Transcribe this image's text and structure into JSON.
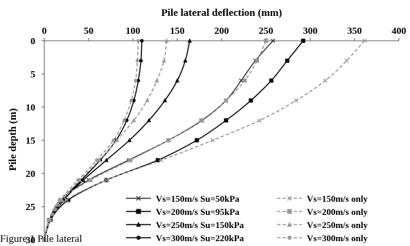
{
  "caption": "Figure 1 Pile lateral",
  "chart_data": {
    "type": "line",
    "xlabel": "Pile lateral deflection (mm)",
    "ylabel": "Pile depth (m)",
    "xlim": [
      0,
      400
    ],
    "ylim": [
      30,
      0
    ],
    "x_axis_position": "top",
    "y_axis_inverted": true,
    "grid": false,
    "legend_position": "bottom-right",
    "xticks": [
      0,
      50,
      100,
      150,
      200,
      250,
      300,
      350,
      400
    ],
    "yticks": [
      0,
      5,
      10,
      15,
      20,
      25,
      30
    ],
    "series": [
      {
        "name": "Vs=150m/s Su=50kPa",
        "color": "#333333",
        "dashed": false,
        "marker": "x",
        "points": [
          [
            258,
            0
          ],
          [
            238,
            3
          ],
          [
            222,
            6
          ],
          [
            205,
            9
          ],
          [
            178,
            12
          ],
          [
            140,
            15
          ],
          [
            95,
            18
          ],
          [
            50,
            21
          ],
          [
            18,
            24
          ],
          [
            6,
            27
          ],
          [
            0,
            30
          ]
        ]
      },
      {
        "name": "Vs=200m/s Su=95kPa",
        "color": "#000000",
        "dashed": false,
        "marker": "square",
        "points": [
          [
            292,
            0
          ],
          [
            274,
            3
          ],
          [
            256,
            6
          ],
          [
            233,
            9
          ],
          [
            205,
            12
          ],
          [
            172,
            15
          ],
          [
            128,
            18
          ],
          [
            70,
            21
          ],
          [
            27,
            24
          ],
          [
            7,
            27
          ],
          [
            0,
            30
          ]
        ]
      },
      {
        "name": "Vs=250m/s Su=150kPa",
        "color": "#000000",
        "dashed": false,
        "marker": "triangle",
        "points": [
          [
            164,
            0
          ],
          [
            159,
            3
          ],
          [
            150,
            6
          ],
          [
            136,
            9
          ],
          [
            118,
            12
          ],
          [
            96,
            15
          ],
          [
            70,
            18
          ],
          [
            44,
            21
          ],
          [
            22,
            24
          ],
          [
            7,
            27
          ],
          [
            0,
            30
          ]
        ]
      },
      {
        "name": "Vs=300m/s Su=220kPa",
        "color": "#000000",
        "dashed": false,
        "marker": "circle",
        "points": [
          [
            110,
            0
          ],
          [
            109,
            3
          ],
          [
            106,
            6
          ],
          [
            101,
            9
          ],
          [
            93,
            12
          ],
          [
            81,
            15
          ],
          [
            63,
            18
          ],
          [
            42,
            21
          ],
          [
            20,
            24
          ],
          [
            6,
            27
          ],
          [
            0,
            30
          ]
        ]
      },
      {
        "name": "Vs=150m/s only",
        "color": "#999999",
        "dashed": true,
        "marker": "x",
        "points": [
          [
            361,
            0
          ],
          [
            341,
            3
          ],
          [
            317,
            6
          ],
          [
            284,
            9
          ],
          [
            243,
            12
          ],
          [
            190,
            15
          ],
          [
            132,
            18
          ],
          [
            70,
            21
          ],
          [
            25,
            24
          ],
          [
            7,
            27
          ],
          [
            0,
            30
          ]
        ]
      },
      {
        "name": "Vs=200m/s only",
        "color": "#999999",
        "dashed": true,
        "marker": "square",
        "points": [
          [
            250,
            0
          ],
          [
            240,
            3
          ],
          [
            226,
            6
          ],
          [
            205,
            9
          ],
          [
            177,
            12
          ],
          [
            140,
            15
          ],
          [
            97,
            18
          ],
          [
            52,
            21
          ],
          [
            18,
            24
          ],
          [
            5,
            27
          ],
          [
            0,
            30
          ]
        ]
      },
      {
        "name": "Vs=250m/s only",
        "color": "#999999",
        "dashed": true,
        "marker": "triangle",
        "points": [
          [
            138,
            0
          ],
          [
            135,
            3
          ],
          [
            127,
            6
          ],
          [
            116,
            9
          ],
          [
            101,
            12
          ],
          [
            82,
            15
          ],
          [
            62,
            18
          ],
          [
            40,
            21
          ],
          [
            20,
            24
          ],
          [
            6,
            27
          ],
          [
            0,
            30
          ]
        ]
      },
      {
        "name": "Vs=300m/s only",
        "color": "#999999",
        "dashed": true,
        "marker": "circle",
        "points": [
          [
            106,
            0
          ],
          [
            105,
            3
          ],
          [
            103,
            6
          ],
          [
            98,
            9
          ],
          [
            90,
            12
          ],
          [
            78,
            15
          ],
          [
            59,
            18
          ],
          [
            38,
            21
          ],
          [
            18,
            24
          ],
          [
            5,
            27
          ],
          [
            0,
            30
          ]
        ]
      }
    ]
  }
}
